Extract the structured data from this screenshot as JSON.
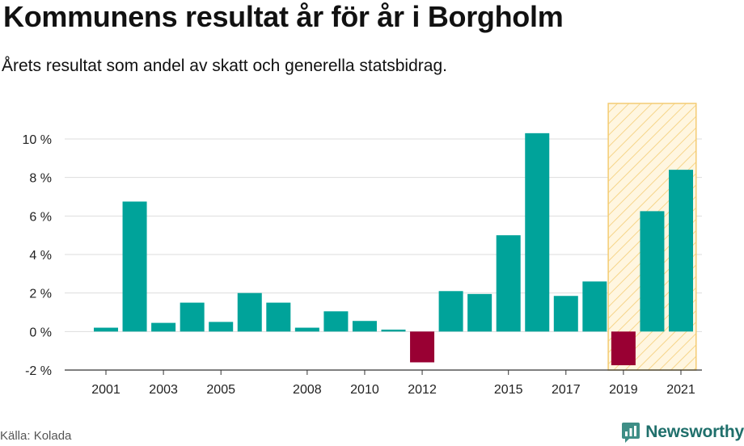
{
  "header": {
    "title": "Kommunens resultat år för år i Borgholm",
    "subtitle": "Årets resultat som andel av skatt och generella statsbidrag."
  },
  "footer": {
    "source": "Källa: Kolada",
    "brand": "Newsworthy"
  },
  "colors": {
    "positive": "#00a39a",
    "negative": "#990033",
    "highlight_fill": "#fff3d6",
    "highlight_stroke": "#f4cc73",
    "grid": "#dddddd"
  },
  "chart_data": {
    "type": "bar",
    "title": "Kommunens resultat år för år i Borgholm",
    "subtitle": "Årets resultat som andel av skatt och generella statsbidrag.",
    "xlabel": "",
    "ylabel": "",
    "categories": [
      "2001",
      "2002",
      "2003",
      "2004",
      "2005",
      "2006",
      "2007",
      "2008",
      "2009",
      "2010",
      "2011",
      "2012",
      "2013",
      "2014",
      "2015",
      "2016",
      "2017",
      "2018",
      "2019",
      "2020",
      "2021"
    ],
    "values": [
      0.2,
      6.75,
      0.45,
      1.5,
      0.5,
      2.0,
      1.5,
      0.2,
      1.05,
      0.55,
      0.1,
      -1.6,
      2.1,
      1.95,
      5.0,
      10.3,
      1.85,
      2.6,
      -1.75,
      6.25,
      8.4
    ],
    "x_tick_labels": [
      "2001",
      "2003",
      "2005",
      "2008",
      "2010",
      "2012",
      "2015",
      "2017",
      "2019",
      "2021"
    ],
    "y_ticks": [
      -2,
      0,
      2,
      4,
      6,
      8,
      10
    ],
    "y_tick_labels": [
      "-2 %",
      "0 %",
      "2 %",
      "4 %",
      "6 %",
      "8 %",
      "10 %"
    ],
    "ylim": [
      -2,
      10
    ],
    "highlight_range": [
      "2019",
      "2021"
    ],
    "grid": true,
    "legend": "none"
  }
}
